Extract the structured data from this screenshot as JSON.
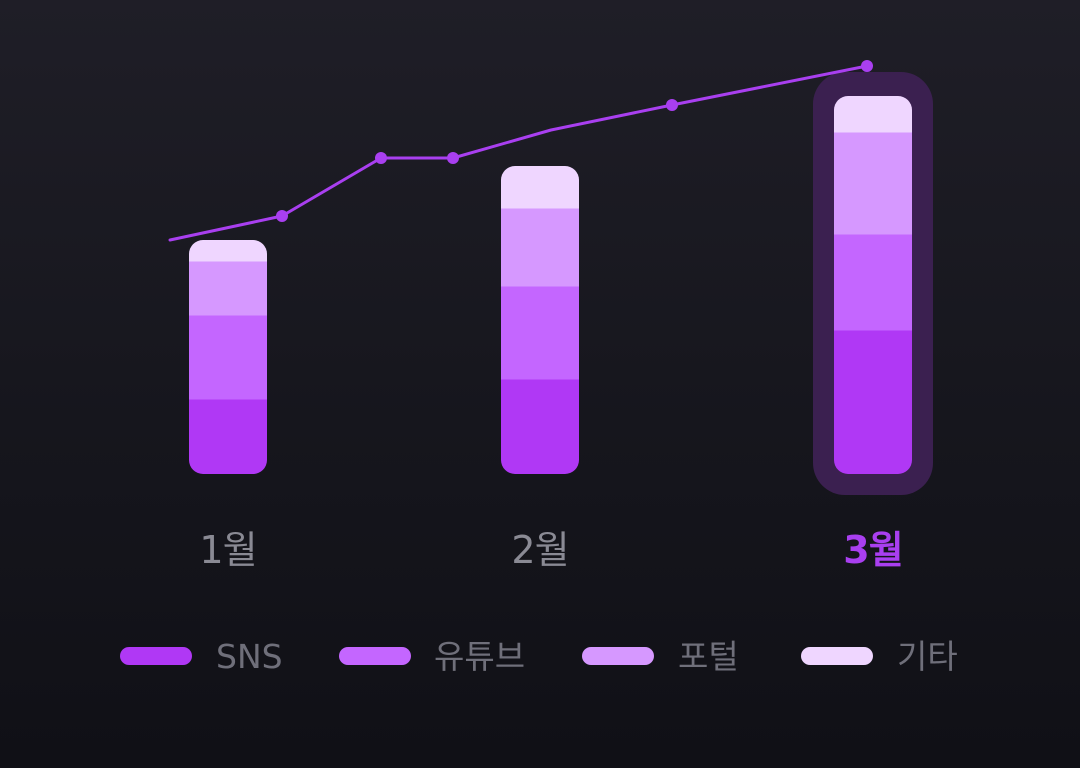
{
  "colors": {
    "sns": "#b038f5",
    "youtube": "#c466ff",
    "portal": "#d698ff",
    "other": "#efd6ff",
    "line": "#a93ff0",
    "highlight": "#3b2050",
    "month_text": "#8a8a94",
    "month_text_active": "#a93ff0",
    "legend_text": "#6f6f7a"
  },
  "chart_data": {
    "type": "bar",
    "stacked": true,
    "categories": [
      "1월",
      "2월",
      "3월"
    ],
    "highlighted_category": "3월",
    "series": [
      {
        "name": "SNS",
        "color_key": "sns",
        "values": [
          75,
          95,
          144
        ]
      },
      {
        "name": "유튜브",
        "color_key": "youtube",
        "values": [
          84,
          93,
          96
        ]
      },
      {
        "name": "포털",
        "color_key": "portal",
        "values": [
          54,
          78,
          102
        ]
      },
      {
        "name": "기타",
        "color_key": "other",
        "values": [
          21,
          42,
          36
        ]
      }
    ],
    "trend_line": {
      "values": [
        234,
        258,
        316,
        316,
        344,
        369,
        408
      ],
      "markers": [
        false,
        true,
        true,
        true,
        false,
        true,
        true
      ]
    },
    "ylim": [
      0,
      420
    ],
    "grid": false,
    "legend_position": "bottom"
  },
  "legend": [
    {
      "label": "SNS",
      "color_key": "sns"
    },
    {
      "label": "유튜브",
      "color_key": "youtube"
    },
    {
      "label": "포털",
      "color_key": "portal"
    },
    {
      "label": "기타",
      "color_key": "other"
    }
  ]
}
